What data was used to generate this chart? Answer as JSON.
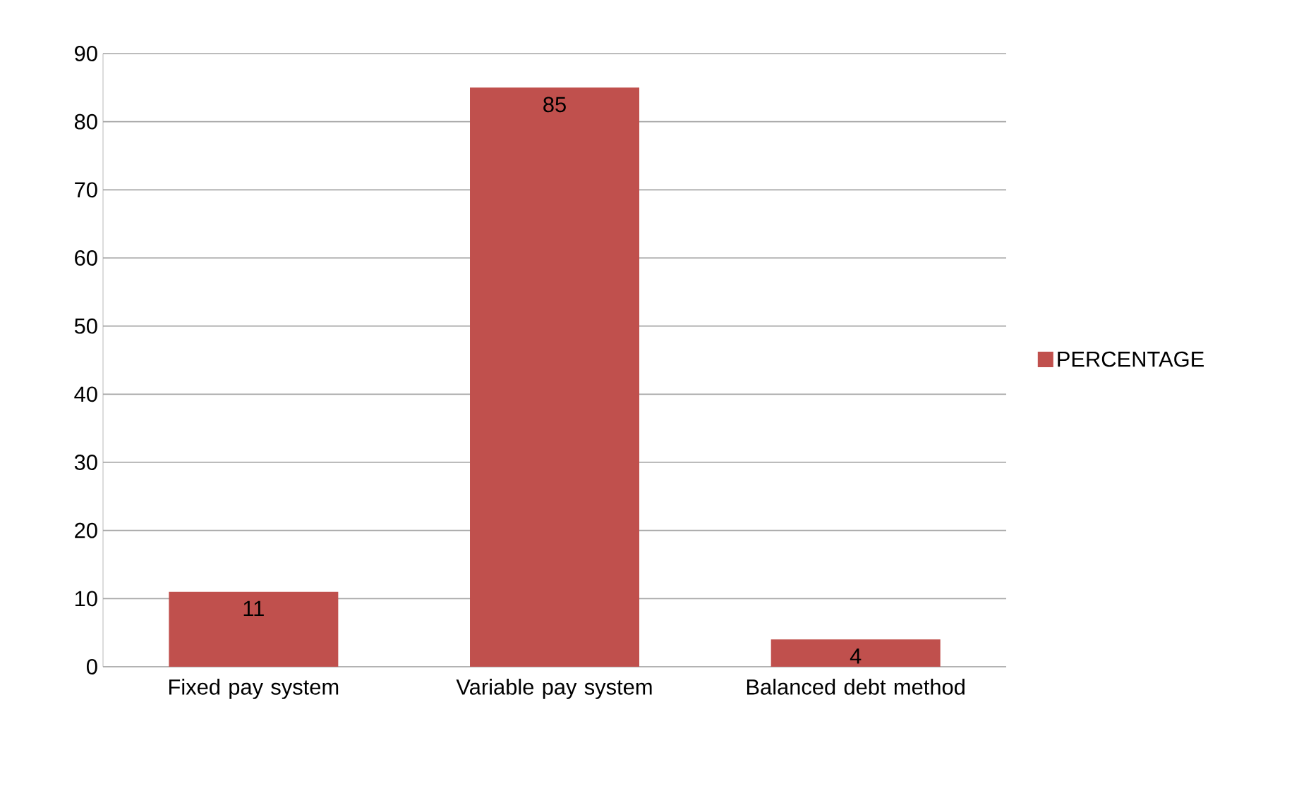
{
  "chart_data": {
    "type": "bar",
    "categories": [
      "Fixed pay system",
      "Variable pay system",
      "Balanced debt method"
    ],
    "series": [
      {
        "name": "PERCENTAGE",
        "color": "#c0504d",
        "values": [
          11,
          85,
          4
        ]
      }
    ],
    "ylim": [
      0,
      90
    ],
    "yticks": [
      0,
      10,
      20,
      30,
      40,
      50,
      60,
      70,
      80,
      90
    ],
    "grid": "y",
    "legend": "right",
    "data_labels": true
  }
}
